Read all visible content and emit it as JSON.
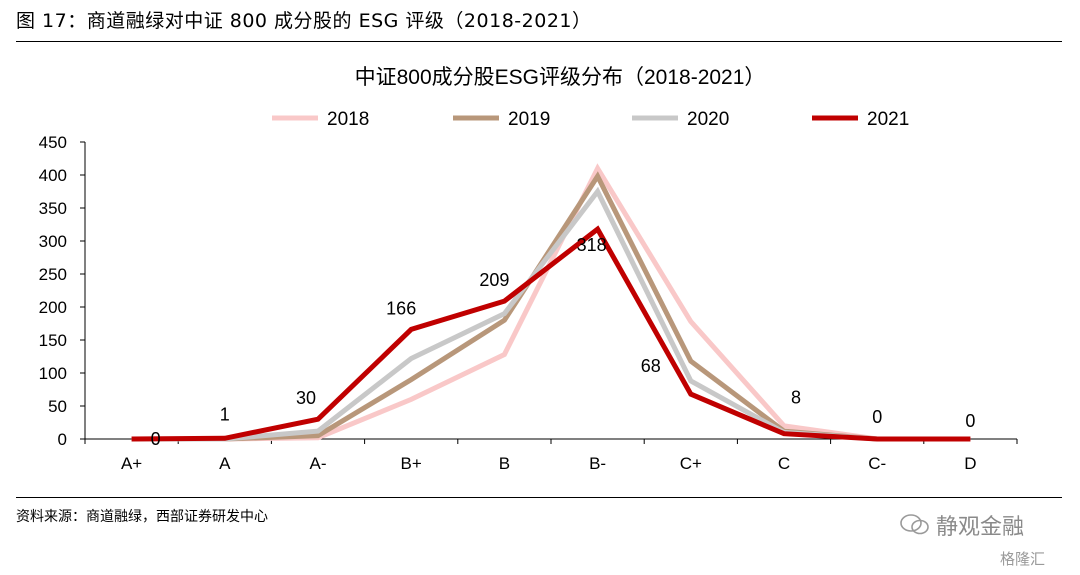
{
  "header": {
    "figure_title": "图 17：商道融绿对中证 800 成分股的 ESG 评级（2018-2021）"
  },
  "footer": {
    "source": "资料来源：商道融绿，西部证券研发中心"
  },
  "watermark": {
    "primary": "静观金融",
    "secondary": "格隆汇"
  },
  "chart_data": {
    "type": "line",
    "title": "中证800成分股ESG评级分布（2018-2021）",
    "categories": [
      "A+",
      "A",
      "A-",
      "B+",
      "B",
      "B-",
      "C+",
      "C",
      "C-",
      "D"
    ],
    "ylim": [
      0,
      450
    ],
    "yticks": [
      0,
      50,
      100,
      150,
      200,
      250,
      300,
      350,
      400,
      450
    ],
    "grid": false,
    "legend_position": "top",
    "series": [
      {
        "name": "2018",
        "color": "#f9c8c8",
        "values": [
          0,
          0,
          2,
          60,
          128,
          410,
          178,
          20,
          0,
          0
        ]
      },
      {
        "name": "2019",
        "color": "#b8977a",
        "values": [
          0,
          0,
          5,
          90,
          180,
          398,
          118,
          12,
          0,
          0
        ]
      },
      {
        "name": "2020",
        "color": "#c8c8c8",
        "values": [
          0,
          0,
          12,
          122,
          190,
          375,
          88,
          10,
          0,
          0
        ]
      },
      {
        "name": "2021",
        "color": "#c00000",
        "values": [
          0,
          1,
          30,
          166,
          209,
          318,
          68,
          8,
          0,
          0
        ]
      }
    ],
    "data_labels": {
      "series": "2021",
      "labels": [
        "0",
        "1",
        "30",
        "166",
        "209",
        "318",
        "68",
        "8",
        "0",
        "0"
      ]
    }
  }
}
